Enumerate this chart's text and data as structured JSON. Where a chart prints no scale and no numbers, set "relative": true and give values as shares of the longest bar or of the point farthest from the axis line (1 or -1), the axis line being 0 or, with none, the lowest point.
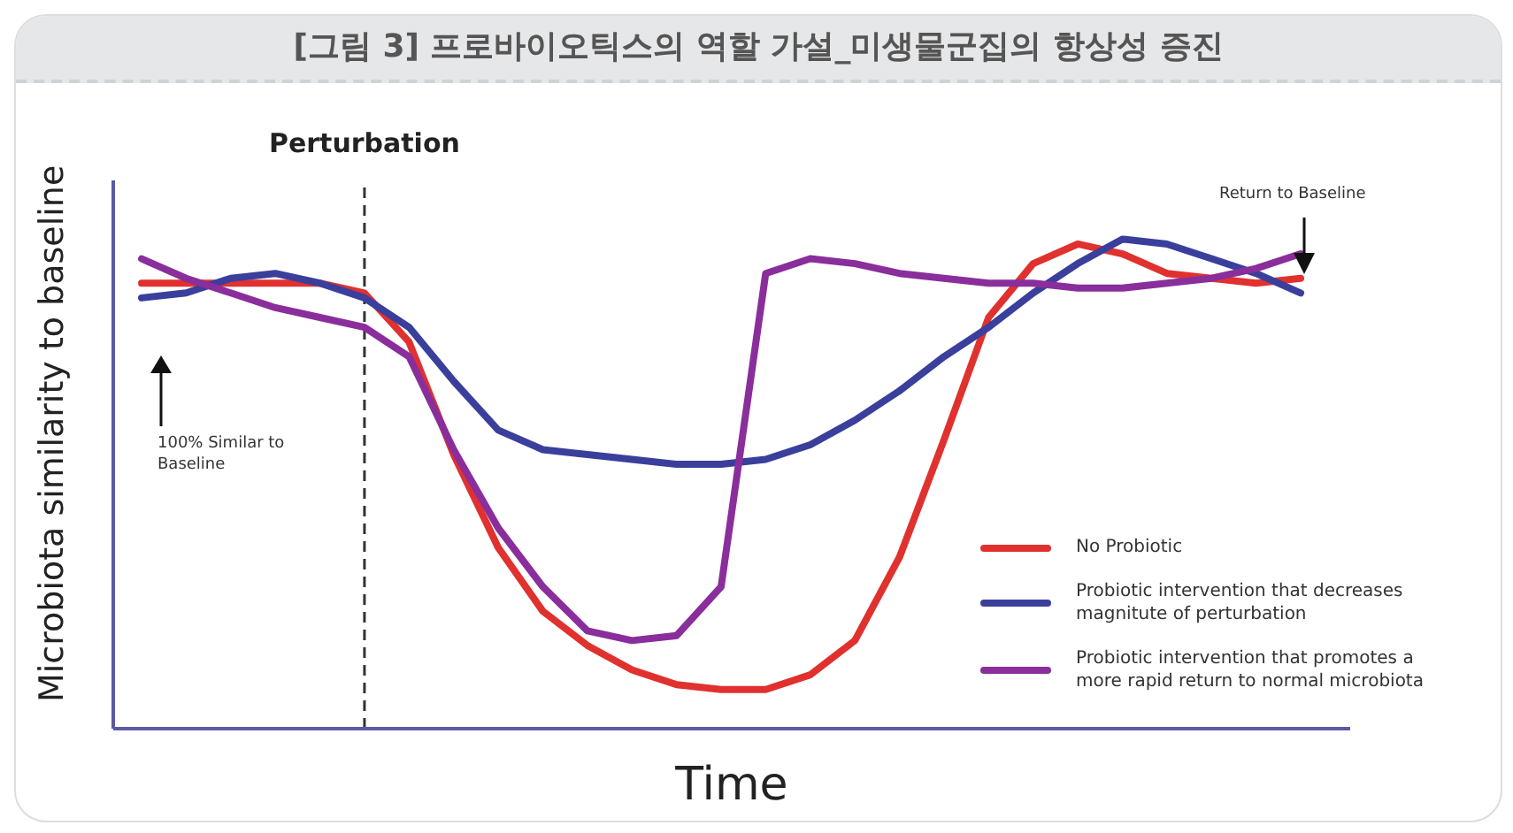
{
  "chart_data": {
    "type": "line",
    "title": "[그림 3] 프로바이오틱스의 역할 가설_미생물군집의 항상성 증진",
    "xlabel": "Time",
    "ylabel": "Microbiota similarity to baseline",
    "relative": true,
    "categories": [
      null,
      null,
      null,
      null,
      null,
      null,
      null,
      null,
      null,
      null,
      null,
      null,
      null,
      null,
      null,
      null,
      null,
      null,
      null,
      null,
      null,
      null,
      null,
      null,
      null,
      null,
      null
    ],
    "grid": false,
    "legend": "bottom right",
    "marker": "none",
    "line_style": "solid",
    "annotations": [
      "Perturbation",
      "100% Similar to Baseline",
      "Return to Baseline"
    ],
    "series": [
      {
        "name": "No Probiotic",
        "color": "#e0312f",
        "values": [
          0.91,
          0.91,
          0.91,
          0.91,
          0.91,
          0.89,
          0.79,
          0.56,
          0.37,
          0.24,
          0.17,
          0.12,
          0.09,
          0.08,
          0.08,
          0.11,
          0.18,
          0.35,
          0.59,
          0.84,
          0.95,
          0.99,
          0.97,
          0.93,
          0.92,
          0.91,
          0.92
        ]
      },
      {
        "name": "Probiotic intervention that decreases magnitute of perturbation",
        "color": "#3a3f9c",
        "values": [
          0.88,
          0.89,
          0.92,
          0.93,
          0.91,
          0.88,
          0.82,
          0.71,
          0.61,
          0.57,
          0.56,
          0.55,
          0.54,
          0.54,
          0.55,
          0.58,
          0.63,
          0.69,
          0.76,
          0.82,
          0.89,
          0.95,
          1,
          0.99,
          0.96,
          0.93,
          0.89
        ]
      },
      {
        "name": "Probiotic intervention that promotes a more rapid return to normal microbiota",
        "color": "#8a2e9c",
        "values": [
          0.96,
          0.92,
          0.89,
          0.86,
          0.84,
          0.82,
          0.76,
          0.57,
          0.41,
          0.29,
          0.2,
          0.18,
          0.19,
          0.29,
          0.93,
          0.96,
          0.95,
          0.93,
          0.92,
          0.91,
          0.91,
          0.9,
          0.9,
          0.91,
          0.92,
          0.94,
          0.97
        ]
      }
    ]
  }
}
